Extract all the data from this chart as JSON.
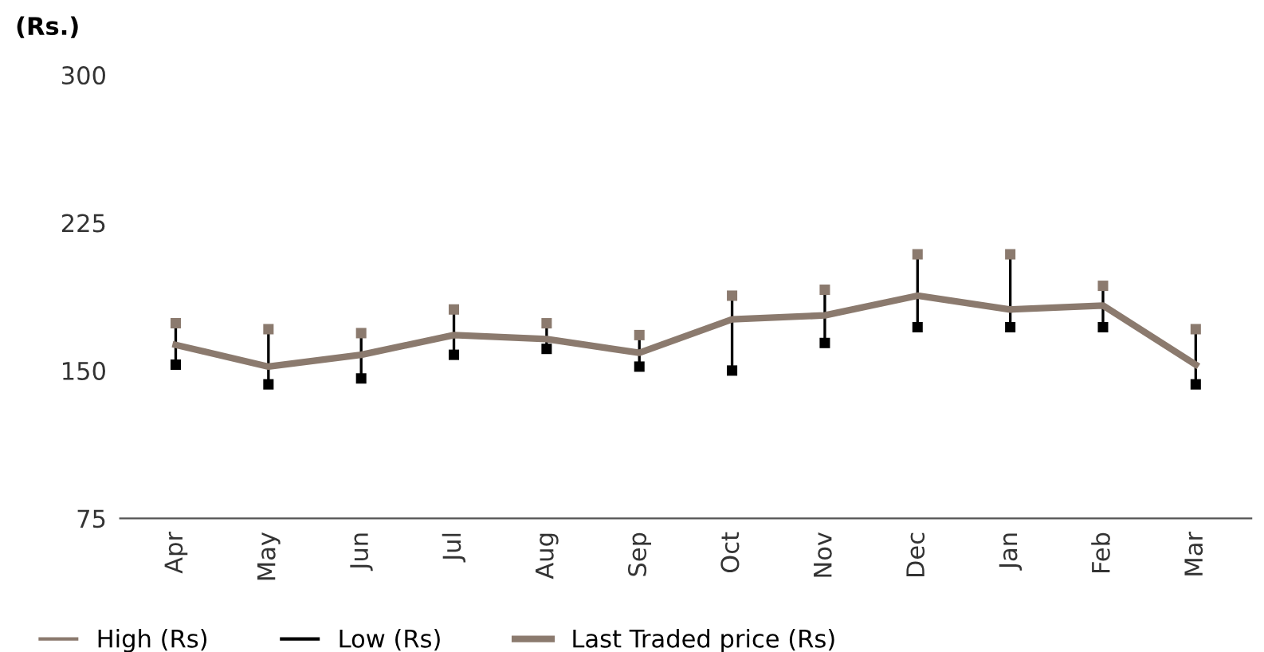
{
  "chart_data": {
    "type": "line",
    "ylabel": "(Rs.)",
    "categories": [
      "Apr",
      "May",
      "Jun",
      "Jul",
      "Aug",
      "Sep",
      "Oct",
      "Nov",
      "Dec",
      "Jan",
      "Feb",
      "Mar"
    ],
    "series": [
      {
        "name": "High (Rs)",
        "type": "scatter",
        "marker": "square",
        "color": "#8b7a6e",
        "values": [
          174,
          171,
          169,
          181,
          174,
          168,
          188,
          191,
          209,
          209,
          193,
          171
        ]
      },
      {
        "name": "Low (Rs)",
        "type": "scatter",
        "marker": "square",
        "color": "#000000",
        "values": [
          153,
          143,
          146,
          158,
          161,
          152,
          150,
          164,
          172,
          172,
          172,
          143
        ]
      },
      {
        "name": "Last Traded price (Rs)",
        "color": "#8b7a6e",
        "values": [
          163,
          152,
          158,
          168,
          166,
          159,
          176,
          178,
          188,
          181,
          183,
          153
        ]
      }
    ],
    "ylim": [
      75,
      300
    ],
    "yticks": [
      75,
      150,
      225,
      300
    ],
    "grid": false,
    "legend": "bottom"
  }
}
